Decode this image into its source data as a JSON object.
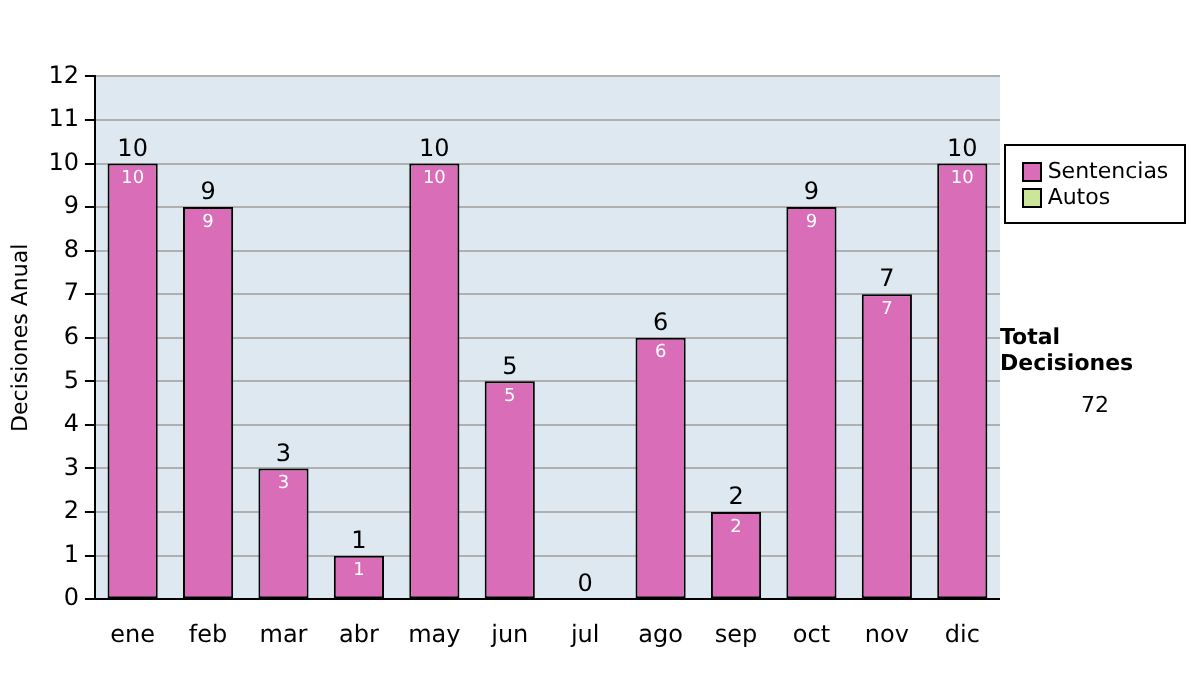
{
  "chart_data": {
    "type": "bar",
    "ylabel": "Decisiones Anual",
    "categories": [
      "ene",
      "feb",
      "mar",
      "abr",
      "may",
      "jun",
      "jul",
      "ago",
      "sep",
      "oct",
      "nov",
      "dic"
    ],
    "series": [
      {
        "name": "Sentencias",
        "color": "#d96db8",
        "values": [
          10,
          9,
          3,
          1,
          10,
          5,
          0,
          6,
          2,
          9,
          7,
          10
        ],
        "value_labels": [
          "10",
          "9",
          "3",
          "1",
          "10",
          "5",
          null,
          "6",
          "2",
          "9",
          "7",
          "10"
        ]
      },
      {
        "name": "Autos",
        "color": "#cce699",
        "values": [
          0,
          0,
          0,
          0,
          0,
          0,
          0,
          0,
          0,
          0,
          0,
          0
        ]
      }
    ],
    "stacked": true,
    "totals": [
      "10",
      "9",
      "3",
      "1",
      "10",
      "5",
      "0",
      "6",
      "2",
      "9",
      "7",
      "10"
    ],
    "ylim": [
      0,
      12
    ],
    "yticks": [
      0,
      1,
      2,
      3,
      4,
      5,
      6,
      7,
      8,
      9,
      10,
      11,
      12
    ],
    "grid": "y",
    "legend": "right",
    "annotations": [
      "Total Decisiones",
      "72"
    ]
  }
}
